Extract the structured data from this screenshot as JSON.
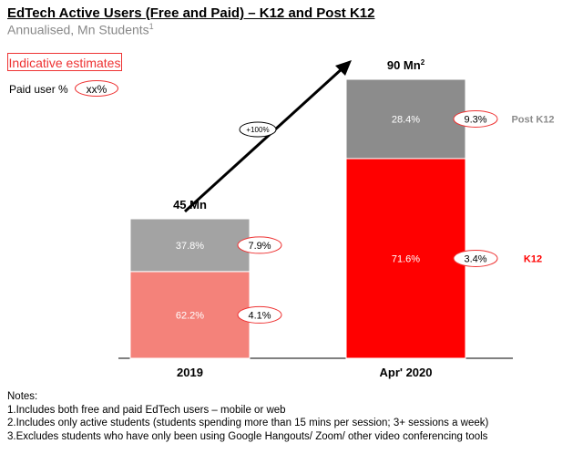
{
  "title": "EdTech Active Users (Free and Paid) – K12 and Post K12",
  "subtitle": "Annualised, Mn Students",
  "subtitle_sup": "1",
  "indicative": "Indicative estimates",
  "legend": {
    "paid_label": "Paid user %",
    "paid_placeholder": "xx%"
  },
  "chart_data": {
    "type": "bar",
    "stacked": true,
    "categories": [
      "2019",
      "Apr' 2020"
    ],
    "totals": [
      45,
      90
    ],
    "total_labels": [
      "45 Mn",
      "90 Mn"
    ],
    "total_label_sups": [
      "",
      "2"
    ],
    "ylim": [
      0,
      90
    ],
    "series": [
      {
        "name": "K12",
        "share_labels": [
          "62.2%",
          "71.6%"
        ],
        "shares": [
          62.2,
          71.6
        ],
        "paid_labels": [
          "4.1%",
          "3.4%"
        ],
        "colors": [
          "#f4827a",
          "#ff0000"
        ],
        "label_color": "#ff0000"
      },
      {
        "name": "Post K12",
        "share_labels": [
          "37.8%",
          "28.4%"
        ],
        "shares": [
          37.8,
          28.4
        ],
        "paid_labels": [
          "7.9%",
          "9.3%"
        ],
        "colors": [
          "#a3a3a3",
          "#8c8c8c"
        ],
        "label_color": "#8c8c8c"
      }
    ],
    "growth_label": "+100%"
  },
  "notes": {
    "heading": "Notes:",
    "items": [
      "1.Includes both free and paid EdTech users – mobile or web",
      "2.Includes only active students (students spending more than 15 mins per session; 3+ sessions a week)",
      "3.Excludes students who have only been using Google Hangouts/ Zoom/ other video conferencing tools"
    ]
  }
}
